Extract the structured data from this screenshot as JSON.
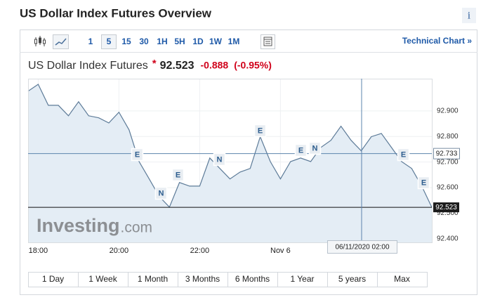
{
  "header": {
    "title": "US Dollar Index Futures Overview",
    "info": "i"
  },
  "toolbar": {
    "intervals": [
      "1",
      "5",
      "15",
      "30",
      "1H",
      "5H",
      "1D",
      "1W",
      "1M"
    ],
    "link": "Technical Chart »"
  },
  "quote": {
    "name": "US Dollar Index Futures",
    "marker": "*",
    "price": "92.523",
    "change": "-0.888",
    "percent": "(-0.95%)"
  },
  "logo": {
    "brand": "Investing",
    "suffix": ".com"
  },
  "ranges": [
    "1 Day",
    "1 Week",
    "1 Month",
    "3 Months",
    "6 Months",
    "1 Year",
    "5 years",
    "Max"
  ],
  "chart_data": {
    "type": "line",
    "categories": [
      null,
      "18:00",
      null,
      null,
      null,
      null,
      null,
      null,
      null,
      "20:00",
      null,
      null,
      null,
      null,
      null,
      null,
      null,
      "22:00",
      null,
      null,
      null,
      null,
      null,
      null,
      null,
      "Nov 6",
      null,
      null,
      null,
      null,
      null,
      null,
      null,
      null,
      null,
      null,
      null,
      null,
      null,
      null,
      null
    ],
    "values": [
      92.977,
      93.004,
      92.922,
      92.922,
      92.881,
      92.936,
      92.881,
      92.873,
      92.853,
      92.895,
      92.826,
      92.702,
      92.634,
      92.565,
      92.524,
      92.62,
      92.606,
      92.606,
      92.716,
      92.675,
      92.634,
      92.661,
      92.675,
      92.799,
      92.702,
      92.634,
      92.702,
      92.716,
      92.702,
      92.757,
      92.785,
      92.84,
      92.785,
      92.744,
      92.799,
      92.812,
      92.757,
      92.702,
      92.675,
      92.606,
      92.523
    ],
    "color": "#5d7b98",
    "fill": "#e4edf5",
    "ylim": [
      92.386,
      93.026
    ],
    "yticks": [
      {
        "value": 92.4,
        "label": "92.400"
      },
      {
        "value": 92.5,
        "label": "92.500"
      },
      {
        "value": 92.6,
        "label": "92.600"
      },
      {
        "value": 92.7,
        "label": "92.700"
      },
      {
        "value": 92.8,
        "label": "92.800"
      },
      {
        "value": 92.9,
        "label": "92.900"
      }
    ],
    "crosshair": {
      "x": "06/11/2020 02:00",
      "y": 92.733
    },
    "events": [
      "E",
      "N",
      "E",
      "N",
      "E",
      "E",
      "N",
      "E",
      "E"
    ]
  }
}
